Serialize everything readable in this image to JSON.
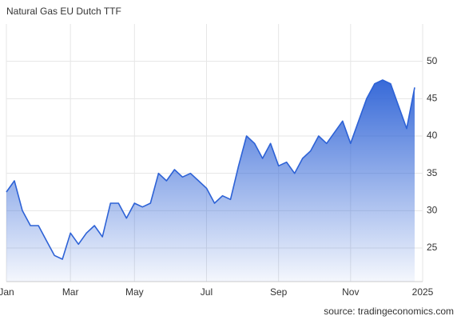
{
  "chart_data": {
    "type": "line",
    "title": "Natural Gas EU Dutch TTF",
    "source": "source: tradingeconomics.com",
    "categories": [
      "Jan",
      null,
      null,
      null,
      null,
      null,
      null,
      null,
      "Mar",
      null,
      null,
      null,
      null,
      null,
      null,
      null,
      "May",
      null,
      null,
      null,
      null,
      null,
      null,
      null,
      null,
      "Jul",
      null,
      null,
      null,
      null,
      null,
      null,
      null,
      null,
      "Sep",
      null,
      null,
      null,
      null,
      null,
      null,
      null,
      null,
      "Nov",
      null,
      null,
      null,
      null,
      null,
      null,
      null,
      null,
      "2025"
    ],
    "values": [
      32.5,
      34,
      30,
      28,
      28,
      26,
      24,
      23.5,
      27,
      25.5,
      27,
      28,
      26.5,
      31,
      31,
      29,
      31,
      30.5,
      31,
      35,
      34,
      35.5,
      34.5,
      35,
      34,
      33,
      31,
      32,
      31.5,
      36,
      40,
      39,
      37,
      39,
      36,
      36.5,
      35,
      37,
      38,
      40,
      39,
      40.5,
      42,
      39,
      42,
      45,
      47,
      47.5,
      47,
      44,
      41,
      46.5,
      null
    ],
    "color": "#2d62d6",
    "ylim": [
      20.5,
      55
    ],
    "yticks": [
      25,
      30,
      35,
      40,
      45,
      50
    ],
    "grid": true
  }
}
